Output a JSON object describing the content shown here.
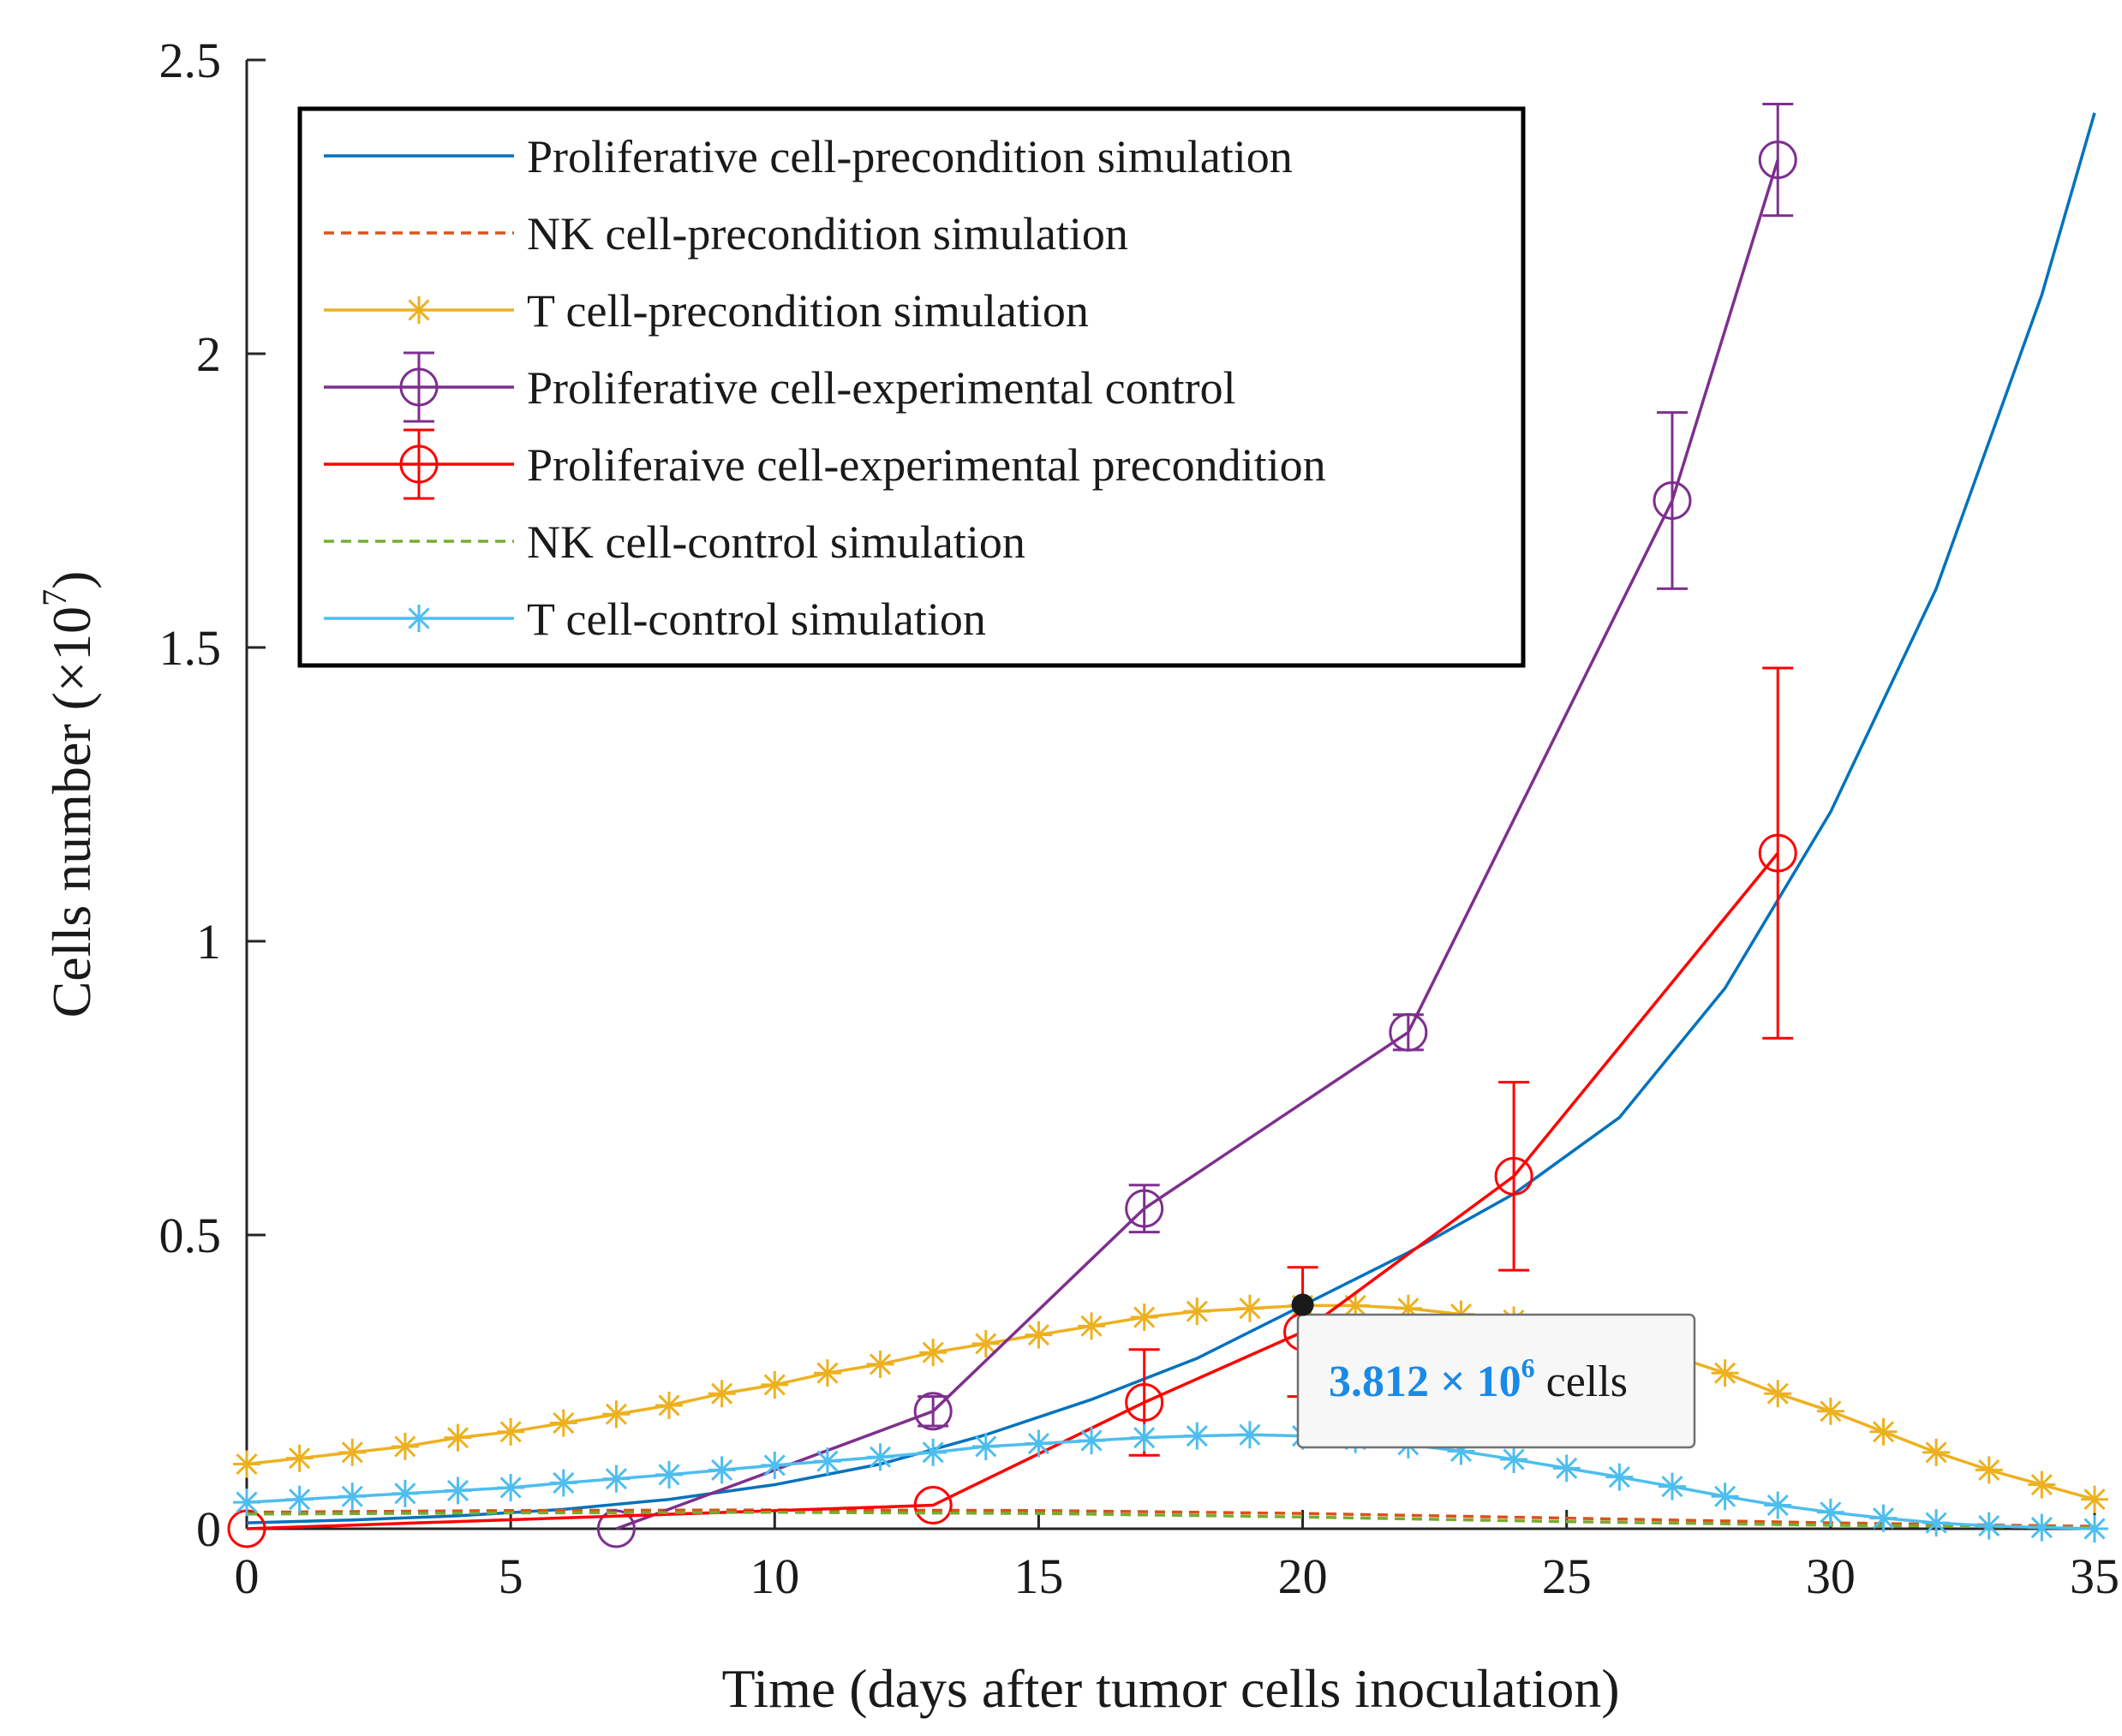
{
  "chart_data": {
    "type": "line",
    "xlabel": "Time (days after tumor cells inoculation)",
    "ylabel": "Cells number (×10",
    "ylabel_exponent": "7",
    "ylabel_close": ")",
    "xlim": [
      0,
      35
    ],
    "ylim": [
      0,
      2.5
    ],
    "x_ticks": [
      0,
      5,
      10,
      15,
      20,
      25,
      30,
      35
    ],
    "x_tick_labels": [
      "0",
      "5",
      "10",
      "15",
      "20",
      "25",
      "30",
      "35"
    ],
    "y_ticks": [
      0,
      0.5,
      1,
      1.5,
      2,
      2.5
    ],
    "y_tick_labels": [
      "0",
      "0.5",
      "1",
      "1.5",
      "2",
      "2.5"
    ],
    "grid": false,
    "legend_position": "top-left",
    "series": [
      {
        "name": "Proliferative cell-precondition simulation",
        "color": "#0072BD",
        "style": "solid",
        "marker": "none",
        "x": [
          0,
          2,
          4,
          6,
          8,
          10,
          12,
          14,
          16,
          18,
          20,
          22,
          24,
          26,
          28,
          30,
          32,
          34,
          35
        ],
        "y": [
          0.01,
          0.015,
          0.022,
          0.033,
          0.05,
          0.075,
          0.11,
          0.16,
          0.22,
          0.29,
          0.38,
          0.47,
          0.57,
          0.7,
          0.92,
          1.22,
          1.6,
          2.1,
          2.41
        ]
      },
      {
        "name": "NK cell-precondition simulation",
        "color": "#D95319",
        "style": "dashed",
        "marker": "none",
        "x": [
          0,
          5,
          10,
          15,
          20,
          25,
          30,
          35
        ],
        "y": [
          0.028,
          0.031,
          0.032,
          0.031,
          0.026,
          0.018,
          0.01,
          0.004
        ]
      },
      {
        "name": "T cell-precondition simulation",
        "color": "#EDB120",
        "style": "solid",
        "marker": "asterisk",
        "x": [
          0,
          1,
          2,
          3,
          4,
          5,
          6,
          7,
          8,
          9,
          10,
          11,
          12,
          13,
          14,
          15,
          16,
          17,
          18,
          19,
          20,
          21,
          22,
          23,
          24,
          25,
          26,
          27,
          28,
          29,
          30,
          31,
          32,
          33,
          34,
          35
        ],
        "y": [
          0.11,
          0.12,
          0.13,
          0.14,
          0.155,
          0.165,
          0.18,
          0.195,
          0.21,
          0.23,
          0.245,
          0.265,
          0.28,
          0.3,
          0.315,
          0.33,
          0.345,
          0.36,
          0.37,
          0.375,
          0.38,
          0.38,
          0.375,
          0.365,
          0.355,
          0.34,
          0.32,
          0.295,
          0.265,
          0.23,
          0.2,
          0.165,
          0.13,
          0.1,
          0.075,
          0.05
        ]
      },
      {
        "name": "Proliferative cell-experimental control",
        "color": "#7E2F8E",
        "style": "solid",
        "marker": "circle",
        "x": [
          7,
          13,
          17,
          22,
          27,
          29
        ],
        "y": [
          0.0,
          0.2,
          0.545,
          0.845,
          1.75,
          2.33
        ],
        "error": [
          0.0,
          0.025,
          0.04,
          0.03,
          0.15,
          0.095
        ]
      },
      {
        "name": "Proliferaive cell-experimental precondition",
        "color": "#FF0000",
        "style": "solid",
        "marker": "circle",
        "x": [
          0,
          13,
          17,
          20,
          24,
          29
        ],
        "y": [
          0.0,
          0.04,
          0.215,
          0.335,
          0.6,
          1.15
        ],
        "error": [
          0.0,
          0.0,
          0.09,
          0.11,
          0.16,
          0.315
        ]
      },
      {
        "name": "NK cell-control simulation",
        "color": "#77AC30",
        "style": "dashed",
        "marker": "none",
        "x": [
          0,
          5,
          10,
          15,
          20,
          25,
          30,
          35
        ],
        "y": [
          0.025,
          0.027,
          0.028,
          0.026,
          0.02,
          0.012,
          0.006,
          0.002
        ]
      },
      {
        "name": "T cell-control simulation",
        "color": "#4DBEEE",
        "style": "solid",
        "marker": "asterisk",
        "x": [
          0,
          1,
          2,
          3,
          4,
          5,
          6,
          7,
          8,
          9,
          10,
          11,
          12,
          13,
          14,
          15,
          16,
          17,
          18,
          19,
          20,
          21,
          22,
          23,
          24,
          25,
          26,
          27,
          28,
          29,
          30,
          31,
          32,
          33,
          34,
          35
        ],
        "y": [
          0.045,
          0.05,
          0.055,
          0.06,
          0.065,
          0.07,
          0.078,
          0.085,
          0.092,
          0.1,
          0.108,
          0.115,
          0.122,
          0.13,
          0.14,
          0.145,
          0.15,
          0.155,
          0.158,
          0.16,
          0.158,
          0.152,
          0.143,
          0.132,
          0.118,
          0.103,
          0.088,
          0.072,
          0.055,
          0.04,
          0.028,
          0.018,
          0.01,
          0.005,
          0.002,
          0.0
        ]
      }
    ],
    "datatip": {
      "x": 20,
      "y": 0.3812,
      "value": "3.812",
      "times": "×",
      "base": "10",
      "exponent": "6",
      "unit": "cells",
      "value_color": "#1a8ae5"
    }
  }
}
